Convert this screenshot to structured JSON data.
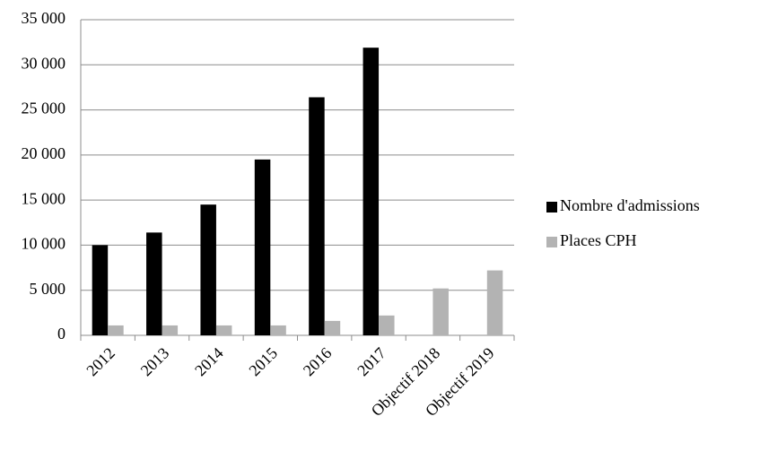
{
  "chart_data": {
    "type": "bar",
    "categories": [
      "2012",
      "2013",
      "2014",
      "2015",
      "2016",
      "2017",
      "Objectif 2018",
      "Objectif 2019"
    ],
    "series": [
      {
        "name": "Nombre d'admissions",
        "color": "#000000",
        "values": [
          10000,
          11400,
          14500,
          19500,
          26400,
          31900,
          null,
          null
        ]
      },
      {
        "name": "Places CPH",
        "color": "#b3b3b3",
        "values": [
          1100,
          1100,
          1100,
          1100,
          1600,
          2200,
          5200,
          7200
        ]
      }
    ],
    "ylim": [
      0,
      35000
    ],
    "yticks": [
      0,
      {
        "value": 5000,
        "label": "5 000"
      },
      {
        "value": 10000,
        "label": "10 000"
      },
      {
        "value": 15000,
        "label": "15 000"
      },
      {
        "value": 20000,
        "label": "20 000"
      },
      {
        "value": 25000,
        "label": "25 000"
      },
      {
        "value": 30000,
        "label": "30 000"
      },
      {
        "value": 35000,
        "label": "35 000"
      }
    ],
    "grid": true,
    "legend": "right"
  }
}
